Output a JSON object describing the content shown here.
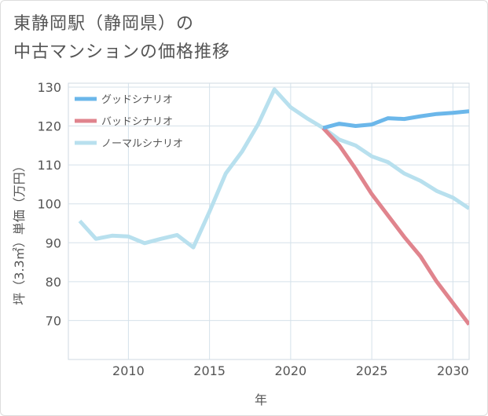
{
  "title": {
    "line1": "東静岡駅（静岡県）の",
    "line2": "中古マンションの価格推移"
  },
  "chart_data": {
    "type": "line",
    "title": "東静岡駅（静岡県）の中古マンションの価格推移",
    "xlabel": "年",
    "ylabel": "坪（3.3㎡）単価（万円）",
    "xlim": [
      2006.3,
      2031
    ],
    "ylim": [
      60,
      131
    ],
    "xticks": [
      2010,
      2015,
      2020,
      2025,
      2030
    ],
    "yticks": [
      70,
      80,
      90,
      100,
      110,
      120,
      130
    ],
    "grid": true,
    "legend_position": "top-left",
    "series": [
      {
        "name": "グッドシナリオ",
        "color": "#6bb7ea",
        "x": [
          2022,
          2023,
          2024,
          2025,
          2026,
          2027,
          2028,
          2029,
          2030,
          2031
        ],
        "values": [
          119.5,
          120.6,
          120.0,
          120.4,
          122.0,
          121.8,
          122.5,
          123.1,
          123.4,
          123.8
        ]
      },
      {
        "name": "バッドシナリオ",
        "color": "#e0848d",
        "x": [
          2022,
          2023,
          2024,
          2025,
          2026,
          2027,
          2028,
          2029,
          2030,
          2031
        ],
        "values": [
          119.5,
          115.0,
          109.0,
          102.5,
          97.0,
          91.5,
          86.5,
          80.0,
          74.5,
          69.0
        ]
      },
      {
        "name": "ノーマルシナリオ",
        "color": "#b8e0ee",
        "x": [
          2007,
          2008,
          2009,
          2010,
          2011,
          2012,
          2013,
          2014,
          2015,
          2016,
          2017,
          2018,
          2019,
          2020,
          2021,
          2022,
          2023,
          2024,
          2025,
          2026,
          2027,
          2028,
          2029,
          2030,
          2031
        ],
        "values": [
          95.6,
          91.0,
          91.8,
          91.6,
          89.9,
          91.0,
          92.0,
          88.8,
          98.0,
          107.8,
          113.4,
          120.5,
          129.4,
          124.8,
          122.0,
          119.5,
          116.5,
          115.0,
          112.2,
          110.7,
          107.8,
          105.9,
          103.3,
          101.6,
          98.8
        ]
      }
    ]
  }
}
